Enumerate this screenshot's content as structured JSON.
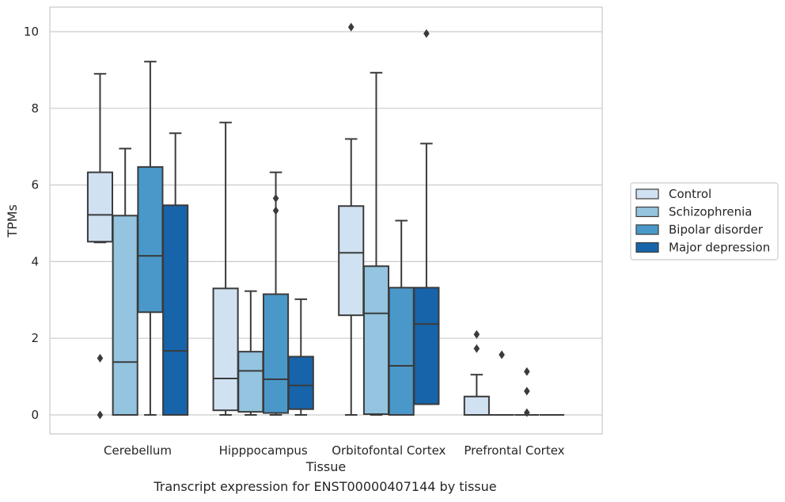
{
  "caption": "Transcript expression for ENST00000407144 by tissue",
  "chart_data": {
    "type": "boxplot",
    "title": "",
    "xlabel": "Tissue",
    "ylabel": "TPMs",
    "ylim": [
      -0.5,
      10.6
    ],
    "yticks": [
      0,
      2,
      4,
      6,
      8,
      10
    ],
    "grid": true,
    "legend_position": "right",
    "categories": [
      "Cerebellum",
      "Hipppocampus",
      "Orbitofontal Cortex",
      "Prefrontal Cortex"
    ],
    "series": [
      {
        "name": "Control",
        "color": "#d0e1f2",
        "boxes": [
          {
            "whislo": 4.5,
            "q1": 4.52,
            "med": 5.22,
            "q3": 6.33,
            "whishi": 8.9,
            "fliers": [
              1.48,
              0.0
            ]
          },
          {
            "whislo": 0.0,
            "q1": 0.12,
            "med": 0.95,
            "q3": 3.3,
            "whishi": 7.63,
            "fliers": []
          },
          {
            "whislo": 0.0,
            "q1": 2.6,
            "med": 4.23,
            "q3": 5.45,
            "whishi": 7.2,
            "fliers": [
              10.12
            ]
          },
          {
            "whislo": 0.0,
            "q1": 0.0,
            "med": 0.0,
            "q3": 0.48,
            "whishi": 1.05,
            "fliers": [
              2.1,
              1.73
            ]
          }
        ]
      },
      {
        "name": "Schizophrenia",
        "color": "#94c4df",
        "boxes": [
          {
            "whislo": 0.0,
            "q1": 0.0,
            "med": 1.38,
            "q3": 5.2,
            "whishi": 6.95,
            "fliers": []
          },
          {
            "whislo": 0.0,
            "q1": 0.08,
            "med": 1.15,
            "q3": 1.65,
            "whishi": 3.23,
            "fliers": []
          },
          {
            "whislo": 0.0,
            "q1": 0.02,
            "med": 2.65,
            "q3": 3.88,
            "whishi": 8.93,
            "fliers": []
          },
          {
            "whislo": 0.0,
            "q1": 0.0,
            "med": 0.0,
            "q3": 0.0,
            "whishi": 0.0,
            "fliers": [
              1.57
            ]
          }
        ]
      },
      {
        "name": "Bipolar disorder",
        "color": "#4a98c9",
        "boxes": [
          {
            "whislo": 0.0,
            "q1": 2.68,
            "med": 4.15,
            "q3": 6.47,
            "whishi": 9.22,
            "fliers": []
          },
          {
            "whislo": 0.0,
            "q1": 0.05,
            "med": 0.93,
            "q3": 3.15,
            "whishi": 6.33,
            "fliers": [
              5.65,
              5.33
            ]
          },
          {
            "whislo": 0.0,
            "q1": 0.0,
            "med": 1.28,
            "q3": 3.32,
            "whishi": 5.07,
            "fliers": []
          },
          {
            "whislo": 0.0,
            "q1": 0.0,
            "med": 0.0,
            "q3": 0.0,
            "whishi": 0.0,
            "fliers": [
              1.13,
              0.62,
              0.06
            ]
          }
        ]
      },
      {
        "name": "Major depression",
        "color": "#1764ab",
        "boxes": [
          {
            "whislo": 0.0,
            "q1": 0.0,
            "med": 1.67,
            "q3": 5.47,
            "whishi": 7.35,
            "fliers": []
          },
          {
            "whislo": 0.0,
            "q1": 0.15,
            "med": 0.77,
            "q3": 1.52,
            "whishi": 3.02,
            "fliers": []
          },
          {
            "whislo": 0.28,
            "q1": 0.28,
            "med": 2.37,
            "q3": 3.32,
            "whishi": 7.08,
            "fliers": [
              9.95
            ]
          },
          {
            "whislo": 0.0,
            "q1": 0.0,
            "med": 0.0,
            "q3": 0.0,
            "whishi": 0.0,
            "fliers": []
          }
        ]
      }
    ]
  }
}
